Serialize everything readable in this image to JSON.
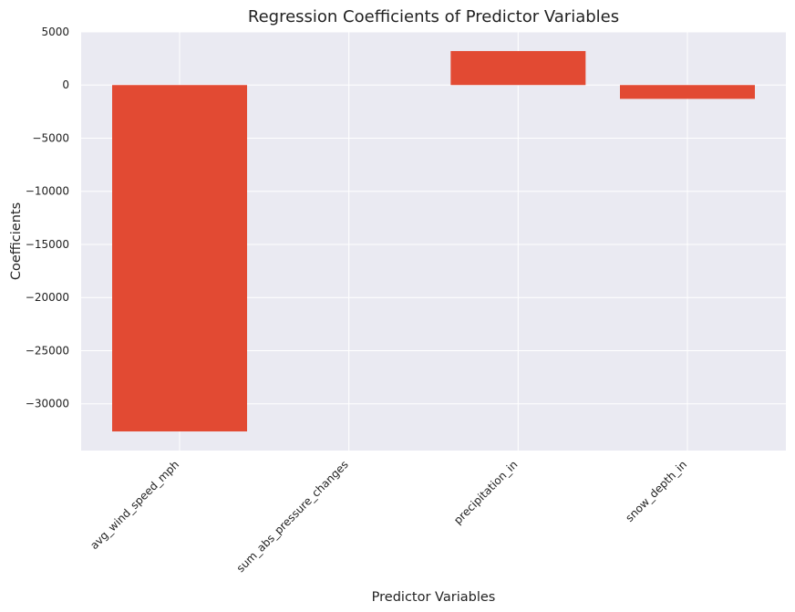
{
  "chart_data": {
    "type": "bar",
    "title": "Regression Coefficients of Predictor Variables",
    "xlabel": "Predictor Variables",
    "ylabel": "Coefficients",
    "categories": [
      "avg_wind_speed_mph",
      "sum_abs_pressure_changes",
      "precipitation_in",
      "snow_depth_in"
    ],
    "values": [
      -32600,
      0,
      3200,
      -1300
    ],
    "ylim": [
      -34400,
      5000
    ],
    "yticks": [
      5000,
      0,
      -5000,
      -10000,
      -15000,
      -20000,
      -25000,
      -30000
    ],
    "ytick_labels": [
      "5000",
      "0",
      "−5000",
      "−10000",
      "−15000",
      "−20000",
      "−25000",
      "−30000"
    ],
    "grid": true,
    "colors": {
      "bar": "#E24A33",
      "plot_background": "#EAEAF2",
      "grid": "#FFFFFF"
    }
  }
}
